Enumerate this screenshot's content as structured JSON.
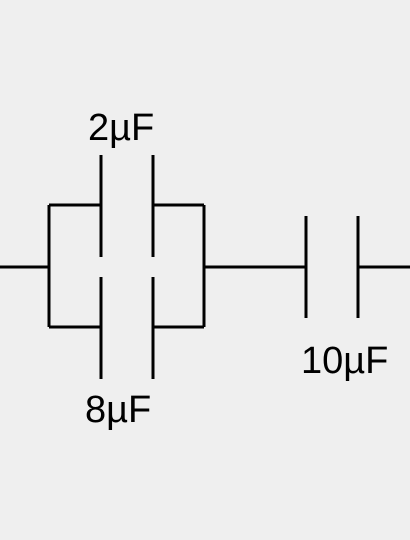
{
  "background_color": "#efefef",
  "stroke_color": "#000000",
  "components": {
    "cap_top": {
      "label": "2µF"
    },
    "cap_bottom": {
      "label": "8µF"
    },
    "cap_series": {
      "label": "10µF"
    }
  }
}
